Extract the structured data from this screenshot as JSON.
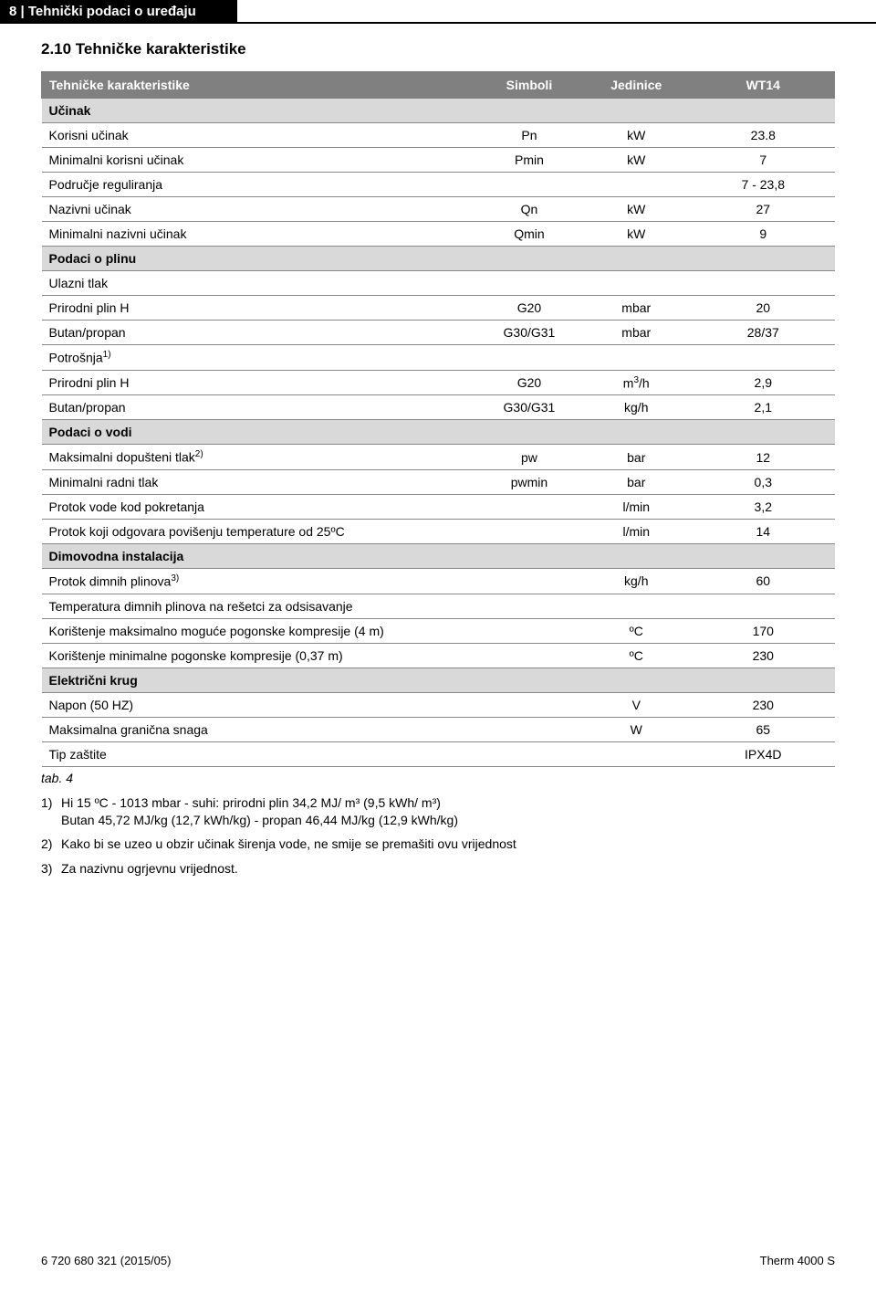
{
  "header": {
    "page_label": "8 | Tehnički podaci o uređaju"
  },
  "section": {
    "title": "2.10  Tehničke karakteristike"
  },
  "table": {
    "headers": [
      "Tehničke karakteristike",
      "Simboli",
      "Jedinice",
      "WT14"
    ],
    "rows": [
      {
        "type": "sub",
        "label": "Učinak"
      },
      {
        "type": "data",
        "c1": "Korisni učinak",
        "c2": "Pn",
        "c3": "kW",
        "c4": "23.8"
      },
      {
        "type": "data",
        "c1": "Minimalni korisni učinak",
        "c2": "Pmin",
        "c3": "kW",
        "c4": "7"
      },
      {
        "type": "data",
        "c1": "Područje reguliranja",
        "c2": "",
        "c3": "",
        "c4": "7 - 23,8"
      },
      {
        "type": "data",
        "c1": "Nazivni učinak",
        "c2": "Qn",
        "c3": "kW",
        "c4": "27"
      },
      {
        "type": "data",
        "c1": "Minimalni nazivni učinak",
        "c2": "Qmin",
        "c3": "kW",
        "c4": "9"
      },
      {
        "type": "sub",
        "label": "Podaci o plinu"
      },
      {
        "type": "data",
        "c1": "Ulazni tlak",
        "c2": "",
        "c3": "",
        "c4": ""
      },
      {
        "type": "data",
        "c1": "Prirodni plin H",
        "c2": "G20",
        "c3": "mbar",
        "c4": "20"
      },
      {
        "type": "data",
        "c1": "Butan/propan",
        "c2": "G30/G31",
        "c3": "mbar",
        "c4": "28/37"
      },
      {
        "type": "data_sup",
        "c1": "Potrošnja",
        "sup": "1)",
        "c2": "",
        "c3": "",
        "c4": ""
      },
      {
        "type": "data_m3h",
        "c1": "Prirodni plin H",
        "c2": "G20",
        "c4": "2,9"
      },
      {
        "type": "data",
        "c1": "Butan/propan",
        "c2": "G30/G31",
        "c3": "kg/h",
        "c4": "2,1"
      },
      {
        "type": "sub",
        "label": "Podaci o vodi"
      },
      {
        "type": "data_sup",
        "c1": "Maksimalni dopušteni tlak",
        "sup": "2)",
        "c2": "pw",
        "c3": "bar",
        "c4": "12"
      },
      {
        "type": "data",
        "c1": "Minimalni radni tlak",
        "c2": "pwmin",
        "c3": "bar",
        "c4": "0,3"
      },
      {
        "type": "data",
        "c1": "Protok vode kod pokretanja",
        "c2": "",
        "c3": "l/min",
        "c4": "3,2"
      },
      {
        "type": "data",
        "c1": "Protok koji odgovara povišenju temperature od 25ºC",
        "c2": "",
        "c3": "l/min",
        "c4": "14"
      },
      {
        "type": "sub",
        "label": "Dimovodna instalacija"
      },
      {
        "type": "data_sup",
        "c1": "Protok dimnih plinova",
        "sup": "3)",
        "c2": "",
        "c3": "kg/h",
        "c4": "60"
      },
      {
        "type": "data",
        "c1": "Temperatura dimnih plinova na rešetci za odsisavanje",
        "c2": "",
        "c3": "",
        "c4": ""
      },
      {
        "type": "data",
        "c1": "Korištenje maksimalno moguće pogonske kompresije (4 m)",
        "c2": "",
        "c3": "ºC",
        "c4": "170"
      },
      {
        "type": "data",
        "c1": "Korištenje minimalne pogonske kompresije (0,37 m)",
        "c2": "",
        "c3": "ºC",
        "c4": "230"
      },
      {
        "type": "sub",
        "label": "Električni krug"
      },
      {
        "type": "data",
        "c1": "Napon (50 HZ)",
        "c2": "",
        "c3": "V",
        "c4": "230"
      },
      {
        "type": "data",
        "c1": "Maksimalna granična snaga",
        "c2": "",
        "c3": "W",
        "c4": "65"
      },
      {
        "type": "data",
        "c1": "Tip zaštite",
        "c2": "",
        "c3": "",
        "c4": "IPX4D"
      }
    ]
  },
  "caption": "tab. 4",
  "footnotes": [
    {
      "num": "1)",
      "text_line1": "Hi 15 ºC - 1013 mbar - suhi: prirodni plin 34,2 MJ/ m³ (9,5 kWh/ m³)",
      "text_line2": "Butan 45,72 MJ/kg (12,7 kWh/kg) - propan 46,44 MJ/kg (12,9 kWh/kg)"
    },
    {
      "num": "2)",
      "text_line1": "Kako bi se uzeo u obzir učinak širenja vode, ne smije se premašiti ovu vrijednost",
      "text_line2": ""
    },
    {
      "num": "3)",
      "text_line1": "Za nazivnu ogrjevnu vrijednost.",
      "text_line2": ""
    }
  ],
  "footer": {
    "left": "6 720 680 321 (2015/05)",
    "right": "Therm 4000 S"
  },
  "colors": {
    "header_bg": "#808080",
    "header_fg": "#ffffff",
    "sub_bg": "#d9d9d9",
    "border": "#888888",
    "page_header_bg": "#000000",
    "page_header_fg": "#ffffff"
  }
}
